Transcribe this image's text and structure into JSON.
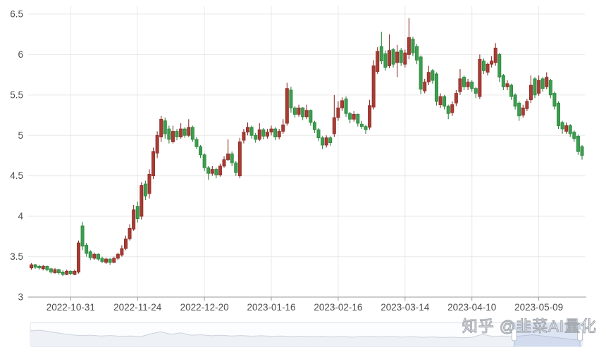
{
  "watermark": {
    "text": "知乎 @韭菜AI量化"
  },
  "chart_data": {
    "type": "candlestick",
    "title": "",
    "xlabel": "",
    "ylabel": "",
    "grid": true,
    "legend": "none",
    "y_axis": {
      "min": 3,
      "max": 6.5,
      "tick_interval": 0.5,
      "tick_labels": [
        "3",
        "3.5",
        "4",
        "4.5",
        "5",
        "5.5",
        "6",
        "6.5"
      ]
    },
    "x_axis": {
      "tick_labels": [
        "2022-10-31",
        "2022-11-24",
        "2022-12-20",
        "2023-01-16",
        "2023-02-16",
        "2023-03-14",
        "2023-04-10",
        "2023-05-09"
      ],
      "tick_indices": [
        10,
        27,
        44,
        61,
        78,
        95,
        112,
        129
      ]
    },
    "colors": {
      "up": "#a83b33",
      "up_border": "#8c2f29",
      "down": "#3c9e4e",
      "down_border": "#2e8540",
      "grid": "#e9e9e9",
      "axis_line": "#999999",
      "label": "#4d4d4d",
      "background": "#ffffff"
    },
    "candles_format": "[open, high, low, close] per trading day, price CNY",
    "candles": [
      [
        3.36,
        3.42,
        3.34,
        3.4
      ],
      [
        3.4,
        3.41,
        3.35,
        3.37
      ],
      [
        3.38,
        3.4,
        3.34,
        3.36
      ],
      [
        3.35,
        3.4,
        3.33,
        3.38
      ],
      [
        3.38,
        3.39,
        3.32,
        3.34
      ],
      [
        3.35,
        3.36,
        3.29,
        3.31
      ],
      [
        3.3,
        3.36,
        3.29,
        3.34
      ],
      [
        3.34,
        3.35,
        3.28,
        3.3
      ],
      [
        3.31,
        3.33,
        3.26,
        3.28
      ],
      [
        3.28,
        3.34,
        3.27,
        3.32
      ],
      [
        3.32,
        3.33,
        3.27,
        3.29
      ],
      [
        3.28,
        3.34,
        3.27,
        3.32
      ],
      [
        3.31,
        3.7,
        3.29,
        3.67
      ],
      [
        3.88,
        3.93,
        3.58,
        3.63
      ],
      [
        3.64,
        3.67,
        3.5,
        3.54
      ],
      [
        3.56,
        3.58,
        3.46,
        3.49
      ],
      [
        3.48,
        3.55,
        3.46,
        3.53
      ],
      [
        3.53,
        3.54,
        3.45,
        3.47
      ],
      [
        3.48,
        3.5,
        3.42,
        3.44
      ],
      [
        3.43,
        3.49,
        3.41,
        3.47
      ],
      [
        3.47,
        3.48,
        3.4,
        3.43
      ],
      [
        3.43,
        3.5,
        3.42,
        3.48
      ],
      [
        3.48,
        3.55,
        3.46,
        3.53
      ],
      [
        3.52,
        3.64,
        3.5,
        3.6
      ],
      [
        3.6,
        3.76,
        3.58,
        3.72
      ],
      [
        3.72,
        3.9,
        3.7,
        3.85
      ],
      [
        3.84,
        4.14,
        3.82,
        4.08
      ],
      [
        4.12,
        4.18,
        3.92,
        3.97
      ],
      [
        4.0,
        4.42,
        3.96,
        4.38
      ],
      [
        4.4,
        4.44,
        4.2,
        4.25
      ],
      [
        4.28,
        4.58,
        4.22,
        4.52
      ],
      [
        4.5,
        4.85,
        4.46,
        4.8
      ],
      [
        4.78,
        5.05,
        4.72,
        5.0
      ],
      [
        4.98,
        5.24,
        4.92,
        5.2
      ],
      [
        5.18,
        5.22,
        4.96,
        5.02
      ],
      [
        5.08,
        5.12,
        4.9,
        4.95
      ],
      [
        4.92,
        5.12,
        4.9,
        5.05
      ],
      [
        5.05,
        5.08,
        4.94,
        4.98
      ],
      [
        4.98,
        5.15,
        4.96,
        5.08
      ],
      [
        5.08,
        5.1,
        4.97,
        5.0
      ],
      [
        5.0,
        5.2,
        4.98,
        5.1
      ],
      [
        5.1,
        5.12,
        4.92,
        4.95
      ],
      [
        4.95,
        4.98,
        4.83,
        4.86
      ],
      [
        4.86,
        4.88,
        4.72,
        4.76
      ],
      [
        4.76,
        4.78,
        4.56,
        4.6
      ],
      [
        4.6,
        4.62,
        4.45,
        4.53
      ],
      [
        4.53,
        4.62,
        4.5,
        4.58
      ],
      [
        4.58,
        4.6,
        4.47,
        4.51
      ],
      [
        4.51,
        4.65,
        4.49,
        4.62
      ],
      [
        4.62,
        4.74,
        4.6,
        4.7
      ],
      [
        4.7,
        4.95,
        4.68,
        4.77
      ],
      [
        4.77,
        4.8,
        4.62,
        4.66
      ],
      [
        4.66,
        4.68,
        4.5,
        4.54
      ],
      [
        4.5,
        4.97,
        4.47,
        4.92
      ],
      [
        4.94,
        5.08,
        4.9,
        5.04
      ],
      [
        5.04,
        5.16,
        5.0,
        5.1
      ],
      [
        5.1,
        5.12,
        4.96,
        5.0
      ],
      [
        5.0,
        5.03,
        4.91,
        4.95
      ],
      [
        4.95,
        5.15,
        4.93,
        5.07
      ],
      [
        5.07,
        5.09,
        4.95,
        4.99
      ],
      [
        4.99,
        5.08,
        4.96,
        5.04
      ],
      [
        5.04,
        5.12,
        5.0,
        5.08
      ],
      [
        5.08,
        5.1,
        4.94,
        4.98
      ],
      [
        4.98,
        5.08,
        4.95,
        5.05
      ],
      [
        5.05,
        5.2,
        5.02,
        5.13
      ],
      [
        5.15,
        5.65,
        5.12,
        5.58
      ],
      [
        5.56,
        5.6,
        5.28,
        5.34
      ],
      [
        5.34,
        5.36,
        5.22,
        5.26
      ],
      [
        5.26,
        5.38,
        5.23,
        5.34
      ],
      [
        5.34,
        5.35,
        5.19,
        5.23
      ],
      [
        5.23,
        5.38,
        5.2,
        5.31
      ],
      [
        5.31,
        5.32,
        5.12,
        5.16
      ],
      [
        5.16,
        5.18,
        5.03,
        5.07
      ],
      [
        5.07,
        5.09,
        4.93,
        4.97
      ],
      [
        4.97,
        4.99,
        4.83,
        4.88
      ],
      [
        4.88,
        5.0,
        4.85,
        4.97
      ],
      [
        4.97,
        4.99,
        4.87,
        4.91
      ],
      [
        5.02,
        5.5,
        4.98,
        5.22
      ],
      [
        5.22,
        5.42,
        5.18,
        5.34
      ],
      [
        5.34,
        5.47,
        5.3,
        5.43
      ],
      [
        5.45,
        5.48,
        5.23,
        5.27
      ],
      [
        5.27,
        5.29,
        5.15,
        5.2
      ],
      [
        5.2,
        5.3,
        5.17,
        5.26
      ],
      [
        5.26,
        5.27,
        5.11,
        5.15
      ],
      [
        5.14,
        5.18,
        5.08,
        5.11
      ],
      [
        5.11,
        5.13,
        5.02,
        5.07
      ],
      [
        5.1,
        5.44,
        5.07,
        5.37
      ],
      [
        5.35,
        5.93,
        5.32,
        5.86
      ],
      [
        5.79,
        6.09,
        5.76,
        6.04
      ],
      [
        6.1,
        6.28,
        5.88,
        5.92
      ],
      [
        6.01,
        6.05,
        5.8,
        5.84
      ],
      [
        5.86,
        6.25,
        5.83,
        6.05
      ],
      [
        6.06,
        6.08,
        5.84,
        5.88
      ],
      [
        5.9,
        6.12,
        5.72,
        6.03
      ],
      [
        6.05,
        6.08,
        5.86,
        5.9
      ],
      [
        5.88,
        6.06,
        5.84,
        6.02
      ],
      [
        6.0,
        6.45,
        5.94,
        6.21
      ],
      [
        6.19,
        6.22,
        5.98,
        6.02
      ],
      [
        6.1,
        6.13,
        5.88,
        5.93
      ],
      [
        5.97,
        5.99,
        5.51,
        5.57
      ],
      [
        5.55,
        5.7,
        5.52,
        5.66
      ],
      [
        5.66,
        5.86,
        5.62,
        5.78
      ],
      [
        5.8,
        5.82,
        5.64,
        5.68
      ],
      [
        5.76,
        5.78,
        5.37,
        5.42
      ],
      [
        5.38,
        5.52,
        5.34,
        5.48
      ],
      [
        5.48,
        5.5,
        5.32,
        5.36
      ],
      [
        5.36,
        5.38,
        5.2,
        5.27
      ],
      [
        5.28,
        5.42,
        5.24,
        5.38
      ],
      [
        5.4,
        5.56,
        5.36,
        5.52
      ],
      [
        5.54,
        5.82,
        5.5,
        5.7
      ],
      [
        5.72,
        5.74,
        5.56,
        5.6
      ],
      [
        5.6,
        5.7,
        5.56,
        5.66
      ],
      [
        5.66,
        5.68,
        5.54,
        5.58
      ],
      [
        5.58,
        5.6,
        5.46,
        5.52
      ],
      [
        5.48,
        6.0,
        5.45,
        5.94
      ],
      [
        5.92,
        5.95,
        5.76,
        5.8
      ],
      [
        5.78,
        5.9,
        5.74,
        5.88
      ],
      [
        5.88,
        5.98,
        5.84,
        5.92
      ],
      [
        5.9,
        6.14,
        5.86,
        6.08
      ],
      [
        6.0,
        6.02,
        5.66,
        5.72
      ],
      [
        5.74,
        5.76,
        5.56,
        5.6
      ],
      [
        5.6,
        5.68,
        5.56,
        5.64
      ],
      [
        5.62,
        5.64,
        5.44,
        5.48
      ],
      [
        5.5,
        5.52,
        5.32,
        5.36
      ],
      [
        5.4,
        5.42,
        5.18,
        5.24
      ],
      [
        5.25,
        5.38,
        5.22,
        5.34
      ],
      [
        5.33,
        5.45,
        5.3,
        5.42
      ],
      [
        5.44,
        5.74,
        5.4,
        5.62
      ],
      [
        5.7,
        5.72,
        5.46,
        5.5
      ],
      [
        5.52,
        5.74,
        5.49,
        5.68
      ],
      [
        5.7,
        5.72,
        5.54,
        5.58
      ],
      [
        5.6,
        5.78,
        5.57,
        5.72
      ],
      [
        5.68,
        5.7,
        5.46,
        5.5
      ],
      [
        5.52,
        5.54,
        5.32,
        5.36
      ],
      [
        5.4,
        5.42,
        5.08,
        5.12
      ],
      [
        5.16,
        5.18,
        5.02,
        5.08
      ],
      [
        5.05,
        5.16,
        5.02,
        5.12
      ],
      [
        5.12,
        5.14,
        4.98,
        5.02
      ],
      [
        5.04,
        5.06,
        4.92,
        4.96
      ],
      [
        4.99,
        5.01,
        4.76,
        4.8
      ],
      [
        4.86,
        4.88,
        4.7,
        4.75
      ]
    ],
    "navigator": {
      "selection_start": 0.876,
      "selection_end": 0.995,
      "points": [
        0.3,
        0.27,
        0.35,
        0.43,
        0.5,
        0.54,
        0.52,
        0.56,
        0.54,
        0.58,
        0.56,
        0.59,
        0.45,
        0.35,
        0.47,
        0.4,
        0.52,
        0.5,
        0.55,
        0.52,
        0.56,
        0.54,
        0.57,
        0.55,
        0.58,
        0.56,
        0.59,
        0.57,
        0.6,
        0.58,
        0.61,
        0.59,
        0.62,
        0.6,
        0.58,
        0.61,
        0.59,
        0.62,
        0.6,
        0.63,
        0.61,
        0.64,
        0.62,
        0.65,
        0.63,
        0.48,
        0.58,
        0.56,
        0.6,
        0.55,
        0.5,
        0.56,
        0.62,
        0.68,
        0.74,
        0.78
      ],
      "colors": {
        "border": "#dfe3ea",
        "bg": "#fcfdfe",
        "line": "#ccd2dd",
        "fill": "#eef1f6",
        "selection_fill": "rgba(115,147,209,0.22)",
        "selection_edge": "#a9b7d7",
        "handle_fill": "#ffffff",
        "handle_border": "#b7bfce"
      }
    }
  }
}
